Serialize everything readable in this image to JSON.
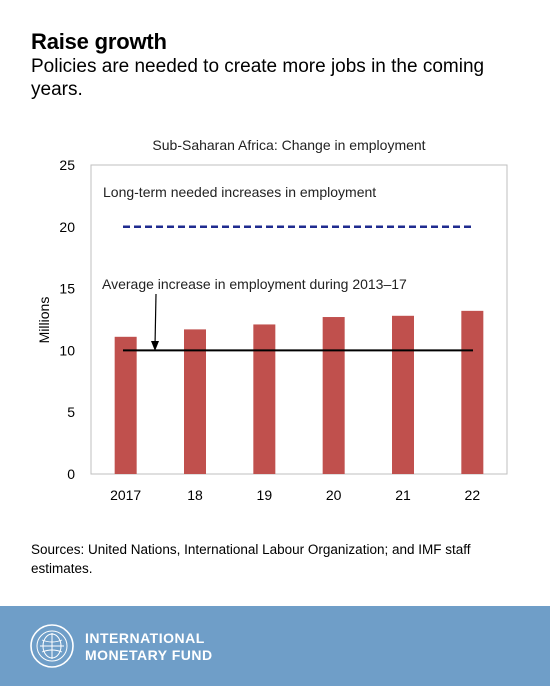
{
  "header": {
    "title": "Raise growth",
    "subtitle": "Policies are needed to create more jobs in the coming years."
  },
  "chart_data": {
    "type": "bar",
    "title": "Sub-Saharan Africa: Change in employment",
    "ylabel": "Millions",
    "xlabel": "",
    "categories": [
      "2017",
      "18",
      "19",
      "20",
      "21",
      "22"
    ],
    "series": [
      {
        "values": [
          11.1,
          11.7,
          12.1,
          12.7,
          12.8,
          13.2
        ]
      }
    ],
    "ylim": [
      0,
      25
    ],
    "yticks": [
      0,
      5,
      10,
      15,
      20,
      25
    ],
    "reference_lines": [
      {
        "label": "Long-term needed increases in employment",
        "value": 20,
        "style": "dashed",
        "color": "#1f2b8f"
      },
      {
        "label": "Average increase in employment during 2013–17",
        "value": 10,
        "style": "solid",
        "color": "#000000"
      }
    ],
    "bar_color": "#c0504d",
    "grid": false,
    "legend": "none"
  },
  "sources": "Sources: United Nations, International Labour Organization; and IMF staff estimates.",
  "footer": {
    "org_line1": "INTERNATIONAL",
    "org_line2": "MONETARY FUND",
    "logo_icon": "imf-seal-icon"
  }
}
